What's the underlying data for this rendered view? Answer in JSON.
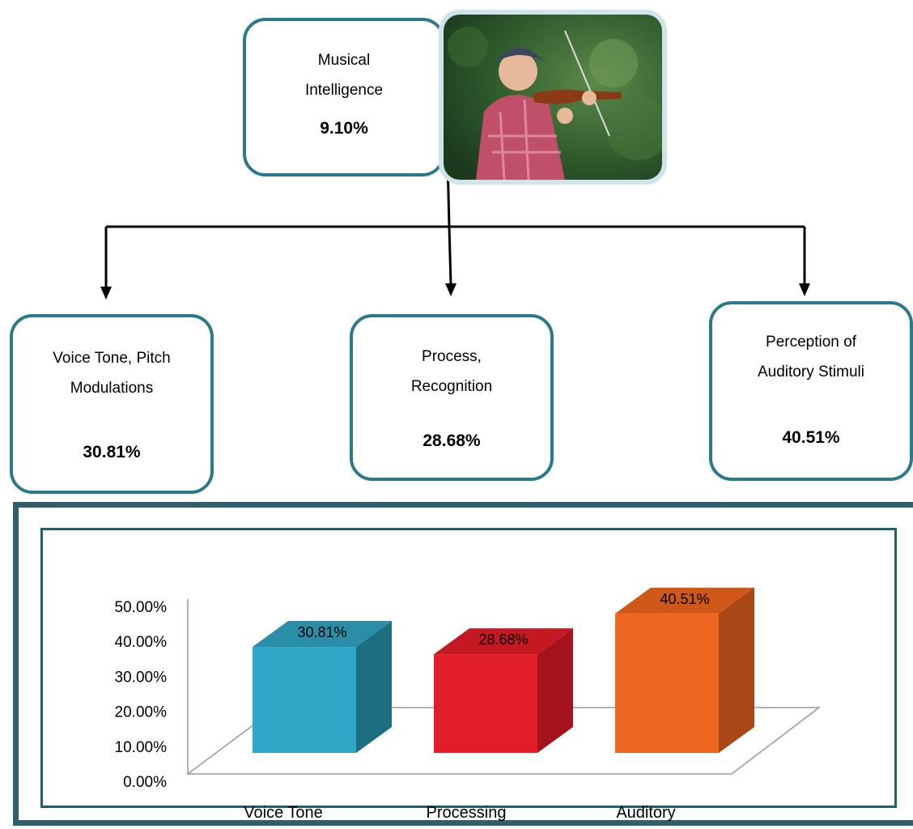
{
  "top_box": {
    "line1": "Musical",
    "line2": "Intelligence",
    "value": "9.10%"
  },
  "photo": {
    "icon": "violinist-photo"
  },
  "children": [
    {
      "line1": "Voice Tone, Pitch",
      "line2": "Modulations",
      "value": "30.81%"
    },
    {
      "line1": "Process,",
      "line2": "Recognition",
      "value": "28.68%"
    },
    {
      "line1": "Perception of",
      "line2": "Auditory Stimuli",
      "value": "40.51%"
    }
  ],
  "colors": {
    "box_border": "#2b7a8c",
    "frame": "#2f5f6a"
  },
  "chart_data": {
    "type": "bar",
    "style": "3d-column",
    "categories": [
      "Voice Tone",
      "Processing",
      "Auditory"
    ],
    "values": [
      30.81,
      28.68,
      40.51
    ],
    "data_labels": [
      "30.81%",
      "28.68%",
      "40.51%"
    ],
    "y_ticks": [
      "0.00%",
      "10.00%",
      "20.00%",
      "30.00%",
      "40.00%",
      "50.00%"
    ],
    "ylim": [
      0,
      50
    ],
    "grid": false,
    "legend": "none",
    "colors": [
      "#2ea8c6",
      "#e21d2a",
      "#ee6720"
    ],
    "side_colors": [
      "#1e6e82",
      "#a5141c",
      "#a94716"
    ],
    "top_colors": [
      "#2a8ea8",
      "#c41822",
      "#cf5818"
    ]
  }
}
